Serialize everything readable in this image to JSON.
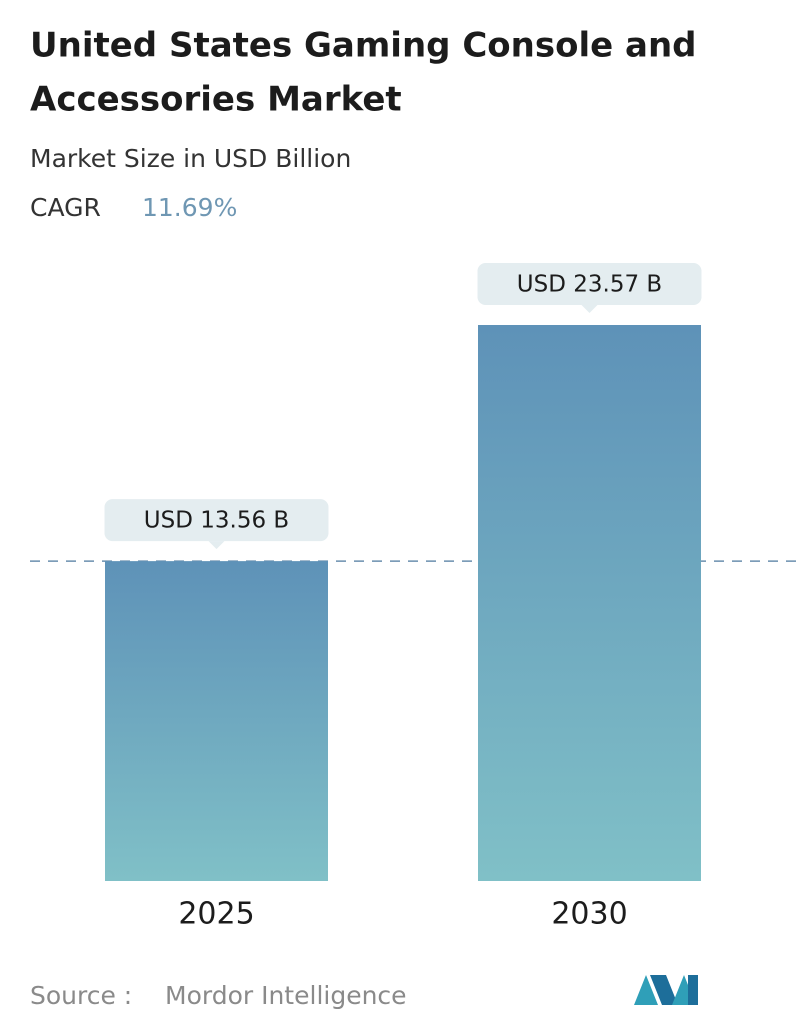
{
  "chart_data": {
    "type": "bar",
    "title_lines": [
      "United States Gaming Console and",
      "Accessories Market"
    ],
    "subtitle": "Market Size in USD Billion",
    "cagr_label": "CAGR",
    "cagr_value": "11.69%",
    "categories": [
      "2025",
      "2030"
    ],
    "values": [
      13.56,
      23.57
    ],
    "value_labels": [
      "USD 13.56 B",
      "USD 23.57 B"
    ],
    "color_top": "#5e92b8",
    "color_bottom": "#80c0c7",
    "source_label": "Source :",
    "source": "Mordor Intelligence"
  }
}
